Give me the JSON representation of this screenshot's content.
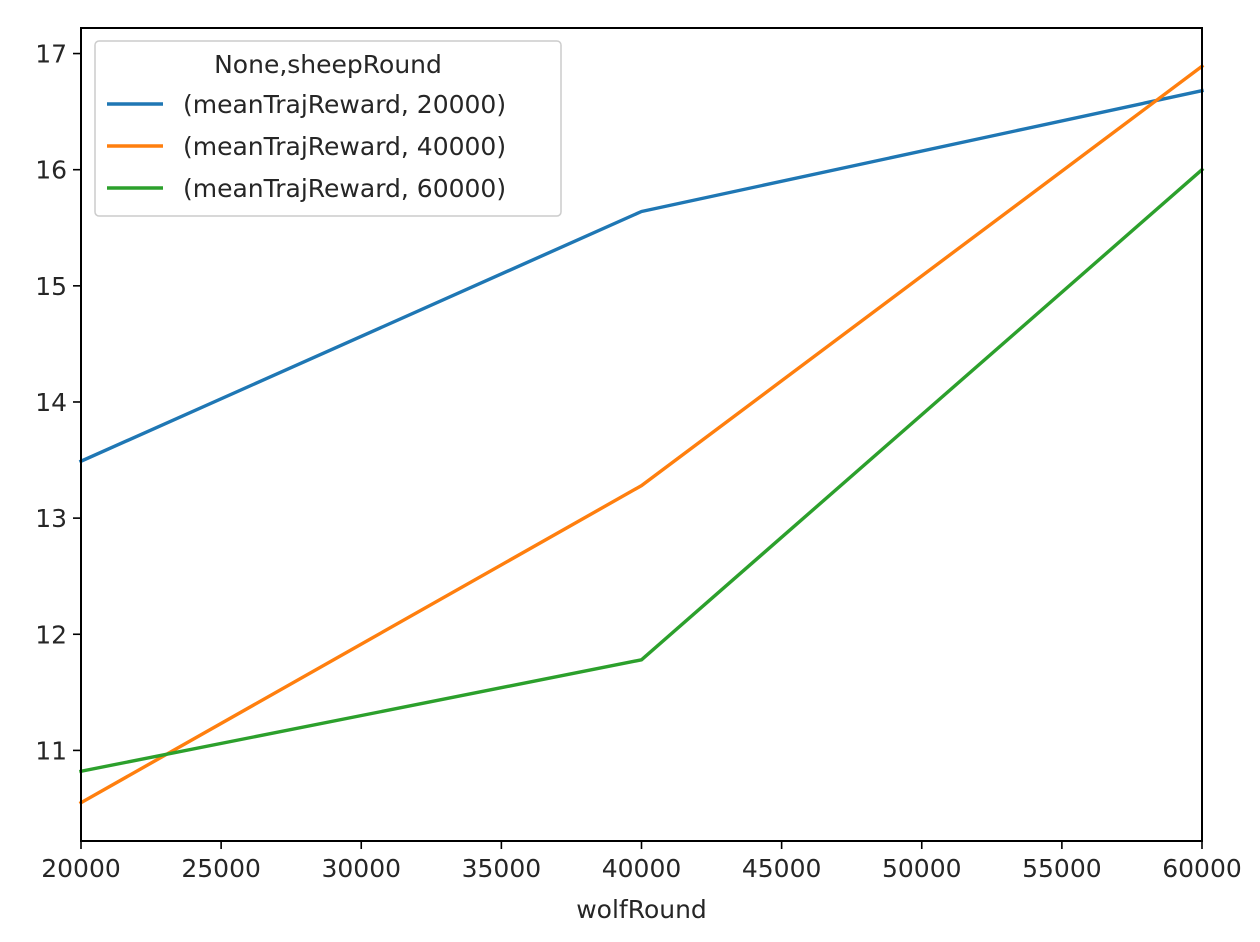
{
  "chart_data": {
    "type": "line",
    "title": "",
    "xlabel": "wolfRound",
    "ylabel": "",
    "x": [
      20000,
      40000,
      60000
    ],
    "xlim": [
      20000,
      60000
    ],
    "ylim": [
      10.22,
      17.22
    ],
    "xticks": [
      20000,
      25000,
      30000,
      35000,
      40000,
      45000,
      50000,
      55000,
      60000
    ],
    "yticks": [
      11,
      12,
      13,
      14,
      15,
      16,
      17
    ],
    "grid": false,
    "legend_position": "top-left",
    "legend_title": "None,sheepRound",
    "series": [
      {
        "name": "(meanTrajReward, 20000)",
        "color": "#1f77b4",
        "values": [
          13.49,
          15.64,
          16.68
        ]
      },
      {
        "name": "(meanTrajReward, 40000)",
        "color": "#ff7f0e",
        "values": [
          10.55,
          13.28,
          16.89
        ]
      },
      {
        "name": "(meanTrajReward, 60000)",
        "color": "#2ca02c",
        "values": [
          10.82,
          11.78,
          16.0
        ]
      }
    ]
  }
}
